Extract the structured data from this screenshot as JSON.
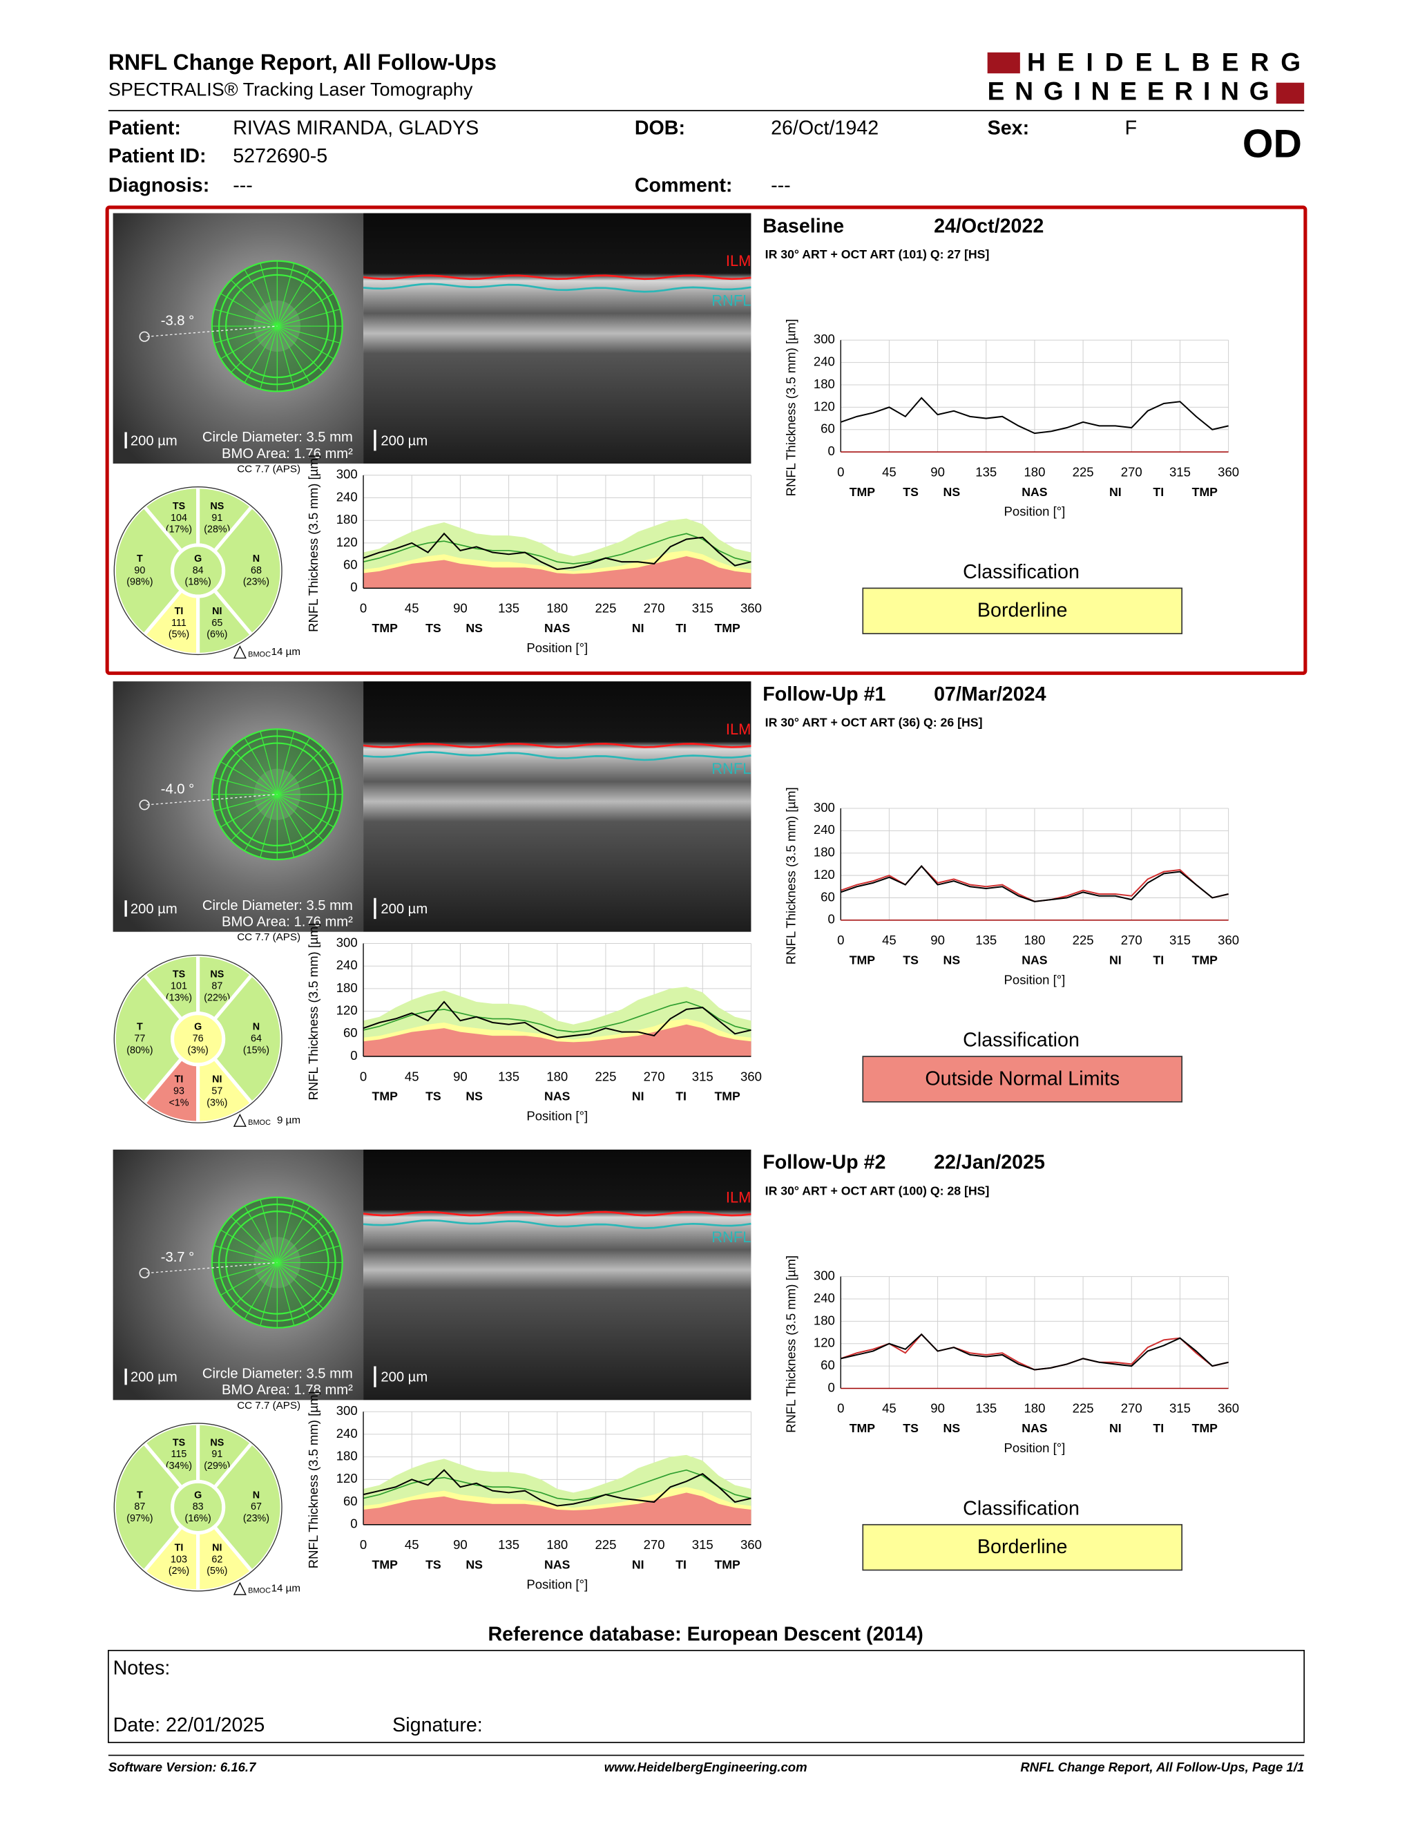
{
  "header": {
    "title": "RNFL Change Report, All Follow-Ups",
    "subtitle": "SPECTRALIS® Tracking Laser Tomography",
    "logo": [
      "HEIDELBERG",
      "ENGINEERING"
    ]
  },
  "patient": {
    "fields": [
      {
        "label": "Patient:",
        "value": "RIVAS MIRANDA, GLADYS"
      },
      {
        "label": "DOB:",
        "value": "26/Oct/1942"
      },
      {
        "label": "Sex:",
        "value": "F"
      },
      {
        "label": "Patient ID:",
        "value": "5272690-5"
      },
      {
        "label": "Diagnosis:",
        "value": "---"
      },
      {
        "label": "Comment:",
        "value": "---"
      }
    ],
    "eye": "OD"
  },
  "profile_chart": {
    "ylabel": "RNFL Thickness (3.5 mm) [µm]",
    "xlabel": "Position [°]",
    "xlim": [
      0,
      360
    ],
    "ylim": [
      0,
      300
    ],
    "xticks": [
      0,
      45,
      90,
      135,
      180,
      225,
      270,
      315,
      360
    ],
    "yticks": [
      0,
      60,
      120,
      180,
      240,
      300
    ],
    "regions": [
      {
        "label": "TMP",
        "value": 20
      },
      {
        "label": "TS",
        "value": 65
      },
      {
        "label": "NS",
        "value": 103
      },
      {
        "label": "NAS",
        "value": 180
      },
      {
        "label": "NI",
        "value": 255
      },
      {
        "label": "TI",
        "value": 295
      },
      {
        "label": "TMP",
        "value": 338
      }
    ],
    "x": [
      0,
      15,
      30,
      45,
      60,
      75,
      90,
      105,
      120,
      135,
      150,
      165,
      180,
      195,
      210,
      225,
      240,
      255,
      270,
      285,
      300,
      315,
      330,
      345,
      360
    ]
  },
  "normative": {
    "upper": [
      95,
      105,
      130,
      150,
      165,
      175,
      160,
      145,
      140,
      140,
      135,
      120,
      95,
      85,
      95,
      110,
      125,
      150,
      165,
      180,
      185,
      170,
      130,
      105,
      95
    ],
    "mean": [
      70,
      80,
      95,
      110,
      120,
      125,
      115,
      105,
      100,
      100,
      95,
      85,
      70,
      65,
      70,
      80,
      90,
      105,
      120,
      135,
      145,
      130,
      100,
      80,
      70
    ],
    "borderline": [
      50,
      55,
      65,
      75,
      85,
      90,
      80,
      75,
      70,
      70,
      65,
      60,
      50,
      45,
      50,
      55,
      60,
      70,
      80,
      95,
      100,
      90,
      70,
      55,
      50
    ],
    "outside": [
      40,
      45,
      55,
      65,
      70,
      75,
      65,
      60,
      55,
      55,
      55,
      50,
      40,
      38,
      40,
      45,
      50,
      55,
      65,
      75,
      85,
      75,
      55,
      45,
      40
    ]
  },
  "colors": {
    "normal": "#c6ee8c",
    "borderline": "#ffff99",
    "outside": "#f08a80",
    "upper": "#d8f5a8",
    "mean": "#2e9e2e",
    "line": "#000000",
    "baseline": "#d03030",
    "frame": "#c00000"
  },
  "exams": [
    {
      "label": "Baseline",
      "date": "24/Oct/2022",
      "scan": "IR 30° ART + OCT ART (101) Q: 27 [HS]",
      "angle": "-3.8 °",
      "ir_scale": "200 µm",
      "circle_diameter": "Circle Diameter: 3.5 mm",
      "bmo_area": "BMO Area: 1.76 mm²",
      "oct_scale": "200 µm",
      "ilm": "ILM",
      "rnfl": "RNFL",
      "cc": "CC 7.7 (APS)",
      "bmoc": "BMOC",
      "bmoc_value": "14 µm",
      "sectors": [
        {
          "name": "TS",
          "value": 104,
          "pct": "(17%)",
          "status": "normal"
        },
        {
          "name": "NS",
          "value": 91,
          "pct": "(28%)",
          "status": "normal"
        },
        {
          "name": "T",
          "value": 90,
          "pct": "(98%)",
          "status": "normal"
        },
        {
          "name": "G",
          "value": 84,
          "pct": "(18%)",
          "status": "normal"
        },
        {
          "name": "N",
          "value": 68,
          "pct": "(23%)",
          "status": "normal"
        },
        {
          "name": "TI",
          "value": 111,
          "pct": "(5%)",
          "status": "borderline"
        },
        {
          "name": "NI",
          "value": 65,
          "pct": "(6%)",
          "status": "normal"
        }
      ],
      "classification_title": "Classification",
      "classification": "Borderline",
      "classification_status": "borderline",
      "values": [
        80,
        95,
        105,
        120,
        95,
        145,
        100,
        110,
        95,
        90,
        95,
        70,
        50,
        55,
        65,
        80,
        70,
        70,
        65,
        110,
        130,
        135,
        95,
        60,
        70
      ]
    },
    {
      "label": "Follow-Up #1",
      "date": "07/Mar/2024",
      "scan": "IR 30° ART + OCT ART (36) Q: 26 [HS]",
      "angle": "-4.0 °",
      "ir_scale": "200 µm",
      "circle_diameter": "Circle Diameter: 3.5 mm",
      "bmo_area": "BMO Area: 1.76 mm²",
      "oct_scale": "200 µm",
      "ilm": "ILM",
      "rnfl": "RNFL",
      "cc": "CC 7.7 (APS)",
      "bmoc": "BMOC",
      "bmoc_value": "9 µm",
      "sectors": [
        {
          "name": "TS",
          "value": 101,
          "pct": "(13%)",
          "status": "normal"
        },
        {
          "name": "NS",
          "value": 87,
          "pct": "(22%)",
          "status": "normal"
        },
        {
          "name": "T",
          "value": 77,
          "pct": "(80%)",
          "status": "normal"
        },
        {
          "name": "G",
          "value": 76,
          "pct": "(3%)",
          "status": "borderline"
        },
        {
          "name": "N",
          "value": 64,
          "pct": "(15%)",
          "status": "normal"
        },
        {
          "name": "TI",
          "value": 93,
          "pct": "<1%",
          "status": "outside"
        },
        {
          "name": "NI",
          "value": 57,
          "pct": "(3%)",
          "status": "borderline"
        }
      ],
      "classification_title": "Classification",
      "classification": "Outside Normal Limits",
      "classification_status": "outside",
      "values": [
        75,
        90,
        100,
        115,
        95,
        145,
        95,
        105,
        90,
        85,
        90,
        65,
        50,
        55,
        60,
        75,
        65,
        65,
        55,
        100,
        125,
        130,
        95,
        60,
        70
      ]
    },
    {
      "label": "Follow-Up #2",
      "date": "22/Jan/2025",
      "scan": "IR 30° ART + OCT ART (100) Q: 28 [HS]",
      "angle": "-3.7 °",
      "ir_scale": "200 µm",
      "circle_diameter": "Circle Diameter: 3.5 mm",
      "bmo_area": "BMO Area: 1.78 mm²",
      "oct_scale": "200 µm",
      "ilm": "ILM",
      "rnfl": "RNFL",
      "cc": "CC 7.7 (APS)",
      "bmoc": "BMOC",
      "bmoc_value": "14 µm",
      "sectors": [
        {
          "name": "TS",
          "value": 115,
          "pct": "(34%)",
          "status": "normal"
        },
        {
          "name": "NS",
          "value": 91,
          "pct": "(29%)",
          "status": "normal"
        },
        {
          "name": "T",
          "value": 87,
          "pct": "(97%)",
          "status": "normal"
        },
        {
          "name": "G",
          "value": 83,
          "pct": "(16%)",
          "status": "normal"
        },
        {
          "name": "N",
          "value": 67,
          "pct": "(23%)",
          "status": "normal"
        },
        {
          "name": "TI",
          "value": 103,
          "pct": "(2%)",
          "status": "borderline"
        },
        {
          "name": "NI",
          "value": 62,
          "pct": "(5%)",
          "status": "borderline"
        }
      ],
      "classification_title": "Classification",
      "classification": "Borderline",
      "classification_status": "borderline",
      "values": [
        80,
        90,
        100,
        120,
        105,
        145,
        100,
        110,
        90,
        85,
        90,
        65,
        50,
        55,
        65,
        80,
        70,
        65,
        60,
        100,
        115,
        135,
        100,
        60,
        70
      ]
    }
  ],
  "reference_database": "Reference database: European Descent (2014)",
  "notes": {
    "notes": "Notes:",
    "date": "Date: 22/01/2025",
    "signature": "Signature:"
  },
  "footer": {
    "software": "Software Version: 6.16.7",
    "url": "www.HeidelbergEngineering.com",
    "page": "RNFL Change Report, All Follow-Ups, Page 1/1"
  }
}
